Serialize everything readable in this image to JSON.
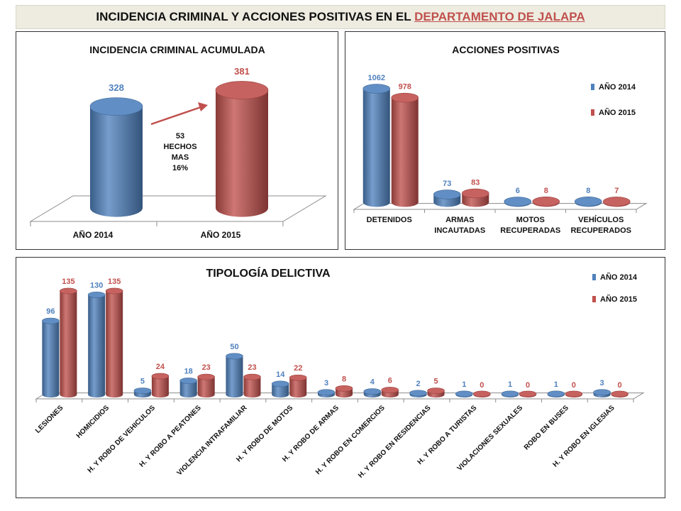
{
  "header": {
    "title_prefix": "INCIDENCIA CRIMINAL Y ACCIONES POSITIVAS EN EL ",
    "title_highlight": "DEPARTAMENTO  DE JALAPA"
  },
  "colors": {
    "s2014": "#4f81bd",
    "s2015": "#c0504d",
    "axis": "#808080",
    "arrow": "#c0504d"
  },
  "chart_data": [
    {
      "id": "incidencia",
      "type": "bar",
      "title": "INCIDENCIA CRIMINAL ACUMULADA",
      "categories": [
        "AÑO 2014",
        "AÑO 2015"
      ],
      "values": [
        328,
        381
      ],
      "annotation": [
        "53",
        "HECHOS",
        "MAS",
        "16%"
      ],
      "grid": false
    },
    {
      "id": "acciones",
      "type": "bar",
      "title": "ACCIONES POSITIVAS",
      "categories": [
        [
          "DETENIDOS"
        ],
        [
          "ARMAS",
          "INCAUTADAS"
        ],
        [
          "MOTOS",
          "RECUPERADAS"
        ],
        [
          "VEHÍCULOS",
          "RECUPERADOS"
        ]
      ],
      "series": [
        {
          "name": "AÑO 2014",
          "values": [
            1062,
            73,
            6,
            8
          ]
        },
        {
          "name": "AÑO 2015",
          "values": [
            978,
            83,
            8,
            7
          ]
        }
      ],
      "legend": "right",
      "grid": false
    },
    {
      "id": "tipologia",
      "type": "bar",
      "title": "TIPOLOGÍA  DELICTIVA",
      "categories": [
        "LESIONES",
        "HOMICIDIOS",
        "H. Y ROBO DE VEHICULOS",
        "H. Y ROBO A PEATONES",
        "VIOLENCIA INTRAFAMILIAR",
        "H. Y ROBO DE MOTOS",
        "H. Y ROBO DE ARMAS",
        "H. Y ROBO EN COMERCIOS",
        "H. Y ROBO EN RESIDENCIAS",
        "H. Y ROBO A TURISTAS",
        "VIOLACIONES SEXUALES",
        "ROBO EN BUSES",
        "H. Y ROBO EN IGLESIAS"
      ],
      "series": [
        {
          "name": "AÑO 2014",
          "values": [
            96,
            130,
            5,
            18,
            50,
            14,
            3,
            4,
            2,
            1,
            1,
            1,
            3
          ]
        },
        {
          "name": "AÑO 2015",
          "values": [
            135,
            135,
            24,
            23,
            23,
            22,
            8,
            6,
            5,
            0,
            0,
            0,
            0
          ]
        }
      ],
      "legend": "top-right",
      "grid": false
    }
  ]
}
